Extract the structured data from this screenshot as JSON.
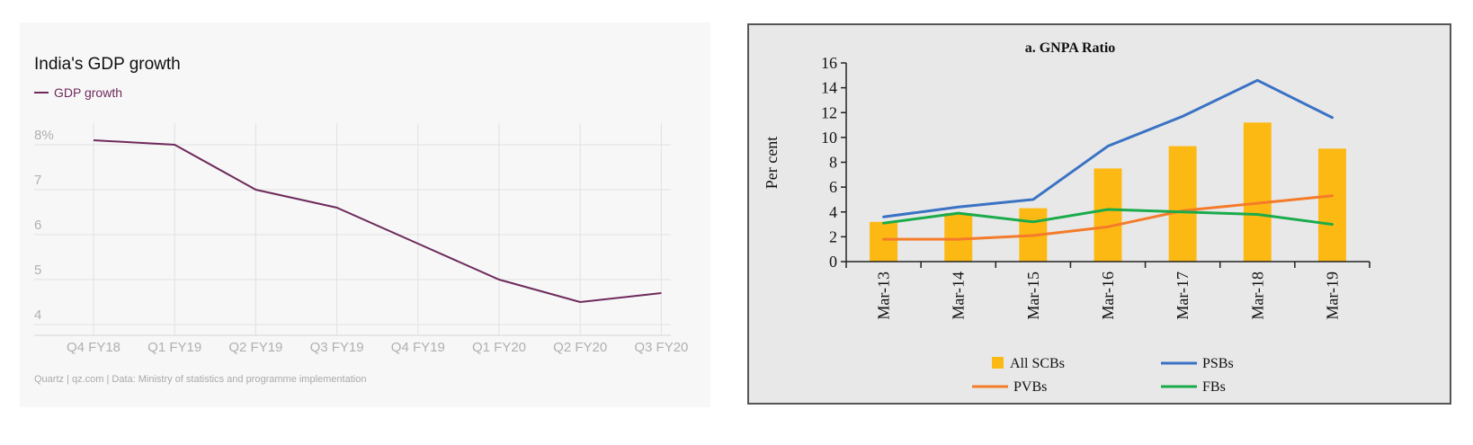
{
  "chart_data": [
    {
      "type": "line",
      "title": "India's GDP growth",
      "legend": [
        {
          "name": "GDP growth",
          "color": "#6e2a5c"
        }
      ],
      "legend_placement": "top-left",
      "categories": [
        "Q4 FY18",
        "Q1 FY19",
        "Q2 FY19",
        "Q3 FY19",
        "Q4 FY19",
        "Q1 FY20",
        "Q2 FY20",
        "Q3 FY20"
      ],
      "series": [
        {
          "name": "GDP growth",
          "color": "#6e2a5c",
          "values": [
            8.1,
            8.0,
            7.0,
            6.6,
            5.8,
            5.0,
            4.5,
            4.7
          ]
        }
      ],
      "ylim": [
        4,
        8.5
      ],
      "yticks": [
        "4",
        "5",
        "6",
        "7",
        "8%"
      ],
      "grid": true,
      "source": "Quartz | qz.com | Data: Ministry of statistics and programme implementation"
    },
    {
      "type": "bar+line",
      "title": "a. GNPA Ratio",
      "ylabel": "Per cent",
      "categories": [
        "Mar-13",
        "Mar-14",
        "Mar-15",
        "Mar-16",
        "Mar-17",
        "Mar-18",
        "Mar-19"
      ],
      "ylim": [
        0,
        16
      ],
      "yticks": [
        "0",
        "2",
        "4",
        "6",
        "8",
        "10",
        "12",
        "14",
        "16"
      ],
      "bars": {
        "name": "All SCBs",
        "color": "#fdb913",
        "values": [
          3.2,
          3.9,
          4.3,
          7.5,
          9.3,
          11.2,
          9.1
        ]
      },
      "series": [
        {
          "name": "PSBs",
          "color": "#3a72c4",
          "values": [
            3.6,
            4.4,
            5.0,
            9.3,
            11.7,
            14.6,
            11.6
          ]
        },
        {
          "name": "PVBs",
          "color": "#f47b2a",
          "values": [
            1.8,
            1.8,
            2.1,
            2.8,
            4.1,
            4.7,
            5.3
          ]
        },
        {
          "name": "FBs",
          "color": "#1aab4b",
          "values": [
            3.1,
            3.9,
            3.2,
            4.2,
            4.0,
            3.8,
            3.0
          ]
        }
      ],
      "legend": [
        {
          "name": "All SCBs",
          "color": "#fdb913",
          "kind": "bar"
        },
        {
          "name": "PSBs",
          "color": "#3a72c4",
          "kind": "line"
        },
        {
          "name": "PVBs",
          "color": "#f47b2a",
          "kind": "line"
        },
        {
          "name": "FBs",
          "color": "#1aab4b",
          "kind": "line"
        }
      ],
      "legend_placement": "bottom",
      "grid": false
    }
  ]
}
